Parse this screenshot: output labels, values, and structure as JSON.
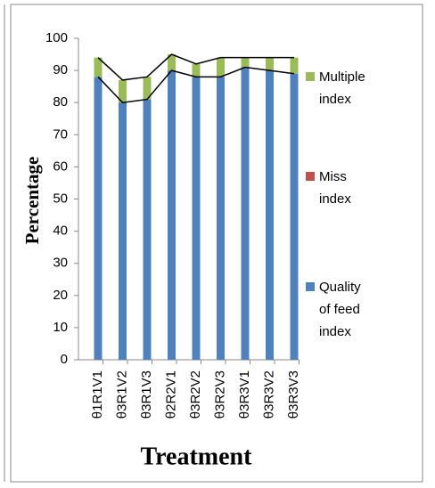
{
  "chart_data": {
    "type": "stacked-bar",
    "y_label": "Percentage",
    "x_label": "Treatment",
    "categories": [
      "θ1R1V1",
      "θ3R1V2",
      "θ3R1V3",
      "θ2R2V1",
      "θ3R2V2",
      "θ3R2V3",
      "θ3R3V1",
      "θ3R3V2",
      "θ3R3V3"
    ],
    "series": [
      {
        "name": "Quality of feed index",
        "color": "#4f81bd",
        "values": [
          88,
          80,
          81,
          90,
          88,
          88,
          91,
          90,
          89
        ]
      },
      {
        "name": "Miss index",
        "color": "#c0504d",
        "values": [
          0,
          0,
          0,
          0,
          0,
          0,
          0,
          0,
          0
        ]
      },
      {
        "name": "Multiple index",
        "color": "#9bbb59",
        "values": [
          6,
          7,
          7,
          5,
          4,
          6,
          3,
          4,
          5
        ]
      }
    ],
    "ylim": [
      0,
      100
    ],
    "yticks": [
      0,
      10,
      20,
      30,
      40,
      50,
      60,
      70,
      80,
      90,
      100
    ],
    "grid": false,
    "legend": "right"
  }
}
